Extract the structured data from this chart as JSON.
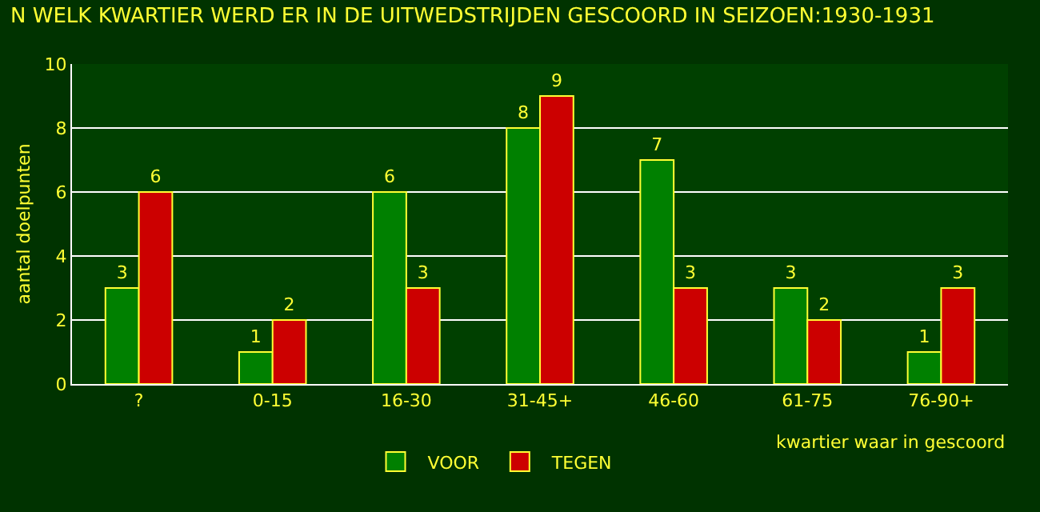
{
  "chart_data": {
    "type": "bar",
    "title": "N WELK KWARTIER WERD ER IN DE UITWEDSTRIJDEN GESCOORD IN SEIZOEN:1930-1931",
    "xlabel": "kwartier waar in gescoord",
    "ylabel": "aantal doelpunten",
    "categories": [
      "?",
      "0-15",
      "16-30",
      "31-45+",
      "46-60",
      "61-75",
      "76-90+"
    ],
    "series": [
      {
        "name": "VOOR",
        "color": "#008000",
        "values": [
          3,
          1,
          6,
          8,
          7,
          3,
          1
        ]
      },
      {
        "name": "TEGEN",
        "color": "#cc0000",
        "values": [
          6,
          2,
          3,
          9,
          3,
          2,
          3
        ]
      }
    ],
    "ylim": [
      0,
      10
    ],
    "yticks": [
      0,
      2,
      4,
      6,
      8,
      10
    ],
    "grid": "y",
    "legend": "bottom",
    "data_labels": true
  }
}
